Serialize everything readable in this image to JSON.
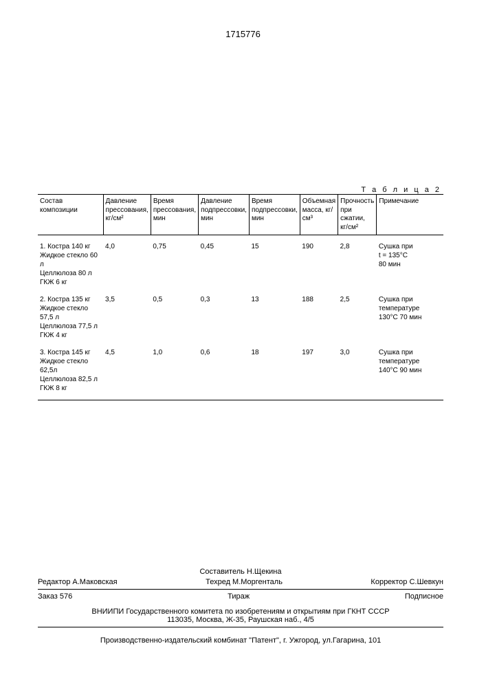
{
  "doc_number": "1715776",
  "table": {
    "caption": "Т а б л и ц а 2",
    "headers": [
      "Состав композиции",
      "Давление прессования, кг/см²",
      "Время прессования, мин",
      "Давление подпрессовки, мин",
      "Время подпрессовки, мин",
      "Объемная масса, кг/см³",
      "Прочность при сжатии, кг/см²",
      "Примечание"
    ],
    "col_widths": [
      "22%",
      "10%",
      "9%",
      "10%",
      "9%",
      "9%",
      "9%",
      "22%"
    ],
    "rows": [
      {
        "composition": "1. Костра 140 кг\nЖидкое стекло 60 л\nЦеллюлоза  80 л\nГКЖ  6 кг",
        "press_p": "4,0",
        "press_t": "0,75",
        "sub_p": "0,45",
        "sub_t": "15",
        "density": "190",
        "strength": "2,8",
        "note": "Сушка при\nt = 135°С\n80 мин"
      },
      {
        "composition": "2. Костра 135 кг\nЖидкое стекло 57,5 л\nЦеллюлоза 77,5 л\nГКЖ 4 кг",
        "press_p": "3,5",
        "press_t": "0,5",
        "sub_p": "0,3",
        "sub_t": "13",
        "density": "188",
        "strength": "2,5",
        "note": "Сушка при температуре\n130°С 70 мин"
      },
      {
        "composition": "3. Костра 145 кг\nЖидкое стекло 62,5л\nЦеллюлоза 82,5 л\nГКЖ  8 кг",
        "press_p": "4,5",
        "press_t": "1,0",
        "sub_p": "0,6",
        "sub_t": "18",
        "density": "197",
        "strength": "3,0",
        "note": "Сушка при температуре\n140°С 90 мин"
      }
    ]
  },
  "credits": {
    "compiler": "Составитель Н.Щекина",
    "editor": "Редактор А.Маковская",
    "techred": "Техред М.Моргенталь",
    "corrector": "Корректор С.Шевкун",
    "order": "Заказ 576",
    "tiraz": "Тираж",
    "subscr": "Подписное"
  },
  "org": {
    "line1": "ВНИИПИ Государственного комитета по изобретениям и открытиям при ГКНТ СССР",
    "line2": "113035, Москва, Ж-35, Раушская наб., 4/5"
  },
  "printer": "Производственно-издательский комбинат \"Патент\", г. Ужгород, ул.Гагарина, 101"
}
